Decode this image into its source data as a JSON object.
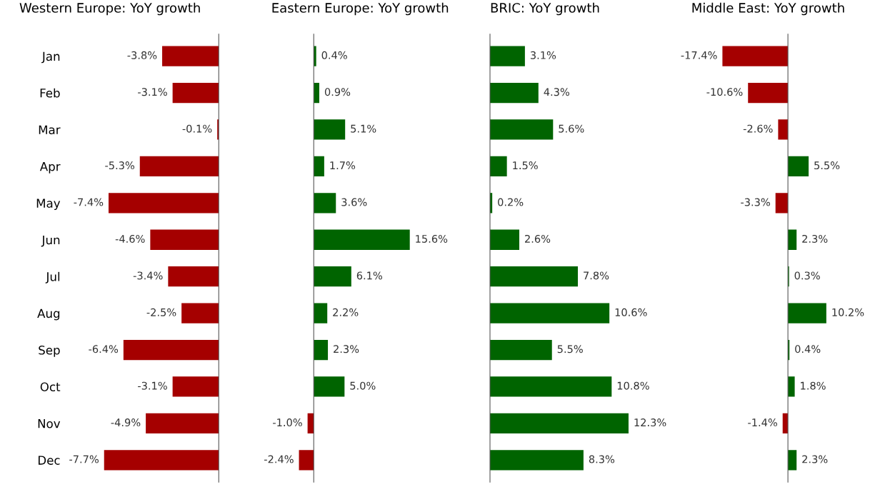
{
  "chart_data": [
    {
      "type": "bar",
      "orientation": "horizontal",
      "title": "Western Europe: YoY growth",
      "categories": [
        "Jan",
        "Feb",
        "Mar",
        "Apr",
        "May",
        "Jun",
        "Jul",
        "Aug",
        "Sep",
        "Oct",
        "Nov",
        "Dec"
      ],
      "values": [
        -3.8,
        -3.1,
        -0.1,
        -5.3,
        -7.4,
        -4.6,
        -3.4,
        -2.5,
        -6.4,
        -3.1,
        -4.9,
        -7.7
      ],
      "value_labels": [
        "-3.8%",
        "-3.1%",
        "-0.1%",
        "-5.3%",
        "-7.4%",
        "-4.6%",
        "-3.4%",
        "-2.5%",
        "-6.4%",
        "-3.1%",
        "-4.9%",
        "-7.7%"
      ],
      "colors": [
        "#a50000",
        "#a50000",
        "#a50000",
        "#a50000",
        "#a50000",
        "#a50000",
        "#a50000",
        "#a50000",
        "#a50000",
        "#a50000",
        "#a50000",
        "#a50000"
      ],
      "tick_labels": "y",
      "grid": false,
      "legend": false
    },
    {
      "type": "bar",
      "orientation": "horizontal",
      "title": "Eastern Europe: YoY growth",
      "values": [
        0.4,
        0.9,
        5.1,
        1.7,
        3.6,
        15.6,
        6.1,
        2.2,
        2.3,
        5.0,
        -1.0,
        -2.4
      ],
      "value_labels": [
        "0.4%",
        "0.9%",
        "5.1%",
        "1.7%",
        "3.6%",
        "15.6%",
        "6.1%",
        "2.2%",
        "2.3%",
        "5.0%",
        "-1.0%",
        "-2.4%"
      ],
      "colors": [
        "#006400",
        "#006400",
        "#006400",
        "#006400",
        "#006400",
        "#006400",
        "#006400",
        "#006400",
        "#006400",
        "#006400",
        "#a50000",
        "#a50000"
      ],
      "tick_labels": false,
      "grid": false,
      "legend": false
    },
    {
      "type": "bar",
      "orientation": "horizontal",
      "title": "BRIC: YoY growth",
      "values": [
        3.1,
        4.3,
        5.6,
        1.5,
        0.2,
        2.6,
        7.8,
        10.6,
        5.5,
        10.8,
        12.3,
        8.3
      ],
      "value_labels": [
        "3.1%",
        "4.3%",
        "5.6%",
        "1.5%",
        "0.2%",
        "2.6%",
        "7.8%",
        "10.6%",
        "5.5%",
        "10.8%",
        "12.3%",
        "8.3%"
      ],
      "colors": [
        "#006400",
        "#006400",
        "#006400",
        "#006400",
        "#006400",
        "#006400",
        "#006400",
        "#006400",
        "#006400",
        "#006400",
        "#006400",
        "#006400"
      ],
      "tick_labels": false,
      "grid": false,
      "legend": false
    },
    {
      "type": "bar",
      "orientation": "horizontal",
      "title": "Middle East: YoY growth",
      "values": [
        -17.4,
        -10.6,
        -2.6,
        5.5,
        -3.3,
        2.3,
        0.3,
        10.2,
        0.4,
        1.8,
        -1.4,
        2.3
      ],
      "value_labels": [
        "-17.4%",
        "-10.6%",
        "-2.6%",
        "5.5%",
        "-3.3%",
        "2.3%",
        "0.3%",
        "10.2%",
        "0.4%",
        "1.8%",
        "-1.4%",
        "2.3%"
      ],
      "colors": [
        "#a50000",
        "#a50000",
        "#a50000",
        "#006400",
        "#a50000",
        "#006400",
        "#006400",
        "#006400",
        "#006400",
        "#006400",
        "#a50000",
        "#006400"
      ],
      "tick_labels": false,
      "grid": false,
      "legend": false
    }
  ]
}
